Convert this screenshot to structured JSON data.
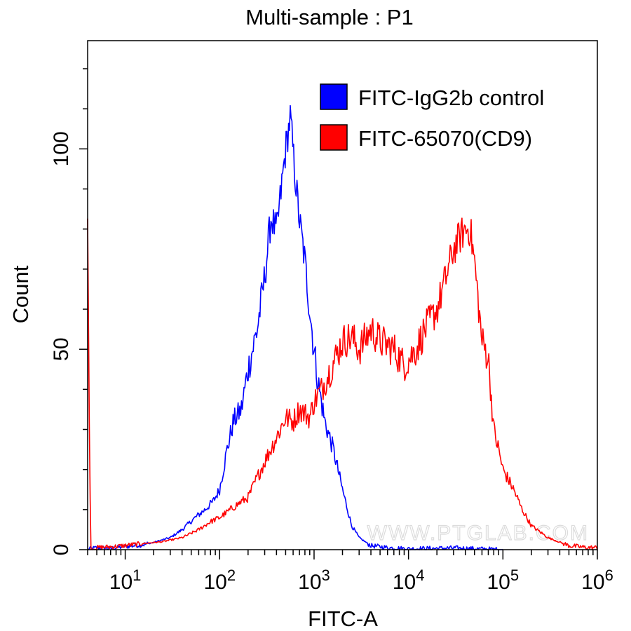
{
  "chart_data": {
    "type": "area",
    "title": "Multi-sample : P1",
    "xlabel": "FITC-A",
    "ylabel": "Count",
    "x_scale": "log",
    "xlim": [
      4,
      1000000
    ],
    "ylim": [
      0,
      127
    ],
    "x_ticks": [
      {
        "value": 10,
        "base": "10",
        "exp": "1"
      },
      {
        "value": 100,
        "base": "10",
        "exp": "2"
      },
      {
        "value": 1000,
        "base": "10",
        "exp": "3"
      },
      {
        "value": 10000,
        "base": "10",
        "exp": "4"
      },
      {
        "value": 100000,
        "base": "10",
        "exp": "5"
      },
      {
        "value": 1000000,
        "base": "10",
        "exp": "6"
      }
    ],
    "y_ticks": [
      0,
      50,
      100
    ],
    "grid": false,
    "legend_position": "top-right",
    "series": [
      {
        "name": "FITC-IgG2b control",
        "color": "#0000ff",
        "points": [
          [
            4,
            0
          ],
          [
            5,
            0.5
          ],
          [
            7,
            0.3
          ],
          [
            10,
            0.8
          ],
          [
            15,
            1.2
          ],
          [
            20,
            1.8
          ],
          [
            30,
            3
          ],
          [
            40,
            5
          ],
          [
            55,
            8
          ],
          [
            70,
            10
          ],
          [
            85,
            12
          ],
          [
            100,
            15
          ],
          [
            120,
            25
          ],
          [
            140,
            32
          ],
          [
            170,
            35
          ],
          [
            200,
            45
          ],
          [
            250,
            55
          ],
          [
            300,
            68
          ],
          [
            350,
            83
          ],
          [
            400,
            79
          ],
          [
            450,
            90
          ],
          [
            500,
            100
          ],
          [
            560,
            108
          ],
          [
            620,
            95
          ],
          [
            700,
            82
          ],
          [
            800,
            72
          ],
          [
            900,
            60
          ],
          [
            1000,
            50
          ],
          [
            1100,
            42
          ],
          [
            1300,
            32
          ],
          [
            1600,
            25
          ],
          [
            2000,
            15
          ],
          [
            2500,
            6
          ],
          [
            3000,
            3
          ],
          [
            4000,
            1
          ],
          [
            6000,
            0.5
          ],
          [
            10000,
            0.2
          ],
          [
            30000,
            0.4
          ],
          [
            100000,
            0
          ]
        ]
      },
      {
        "name": "FITC-65070(CD9)",
        "color": "#ff0000",
        "points": [
          [
            4,
            80
          ],
          [
            4.3,
            0
          ],
          [
            5,
            0.5
          ],
          [
            8,
            0.8
          ],
          [
            15,
            1.5
          ],
          [
            25,
            2
          ],
          [
            40,
            3
          ],
          [
            60,
            5
          ],
          [
            80,
            7
          ],
          [
            100,
            8
          ],
          [
            130,
            10
          ],
          [
            170,
            12
          ],
          [
            200,
            13
          ],
          [
            250,
            18
          ],
          [
            300,
            22
          ],
          [
            400,
            28
          ],
          [
            500,
            33
          ],
          [
            600,
            32
          ],
          [
            700,
            35
          ],
          [
            900,
            33
          ],
          [
            1000,
            37
          ],
          [
            1200,
            40
          ],
          [
            1500,
            45
          ],
          [
            2000,
            52
          ],
          [
            2500,
            53
          ],
          [
            3000,
            50
          ],
          [
            4000,
            55
          ],
          [
            5000,
            52
          ],
          [
            7000,
            50
          ],
          [
            9000,
            46
          ],
          [
            12000,
            50
          ],
          [
            15000,
            55
          ],
          [
            20000,
            60
          ],
          [
            25000,
            68
          ],
          [
            30000,
            75
          ],
          [
            35000,
            78
          ],
          [
            40000,
            80
          ],
          [
            45000,
            80
          ],
          [
            50000,
            72
          ],
          [
            60000,
            52
          ],
          [
            70000,
            48
          ],
          [
            80000,
            30
          ],
          [
            90000,
            25
          ],
          [
            100000,
            20
          ],
          [
            130000,
            15
          ],
          [
            160000,
            10
          ],
          [
            200000,
            6
          ],
          [
            300000,
            3
          ],
          [
            500000,
            1
          ],
          [
            800000,
            0.5
          ],
          [
            1000000,
            0.5
          ]
        ]
      }
    ]
  },
  "watermark": "WWW.PTGLAB.COM"
}
